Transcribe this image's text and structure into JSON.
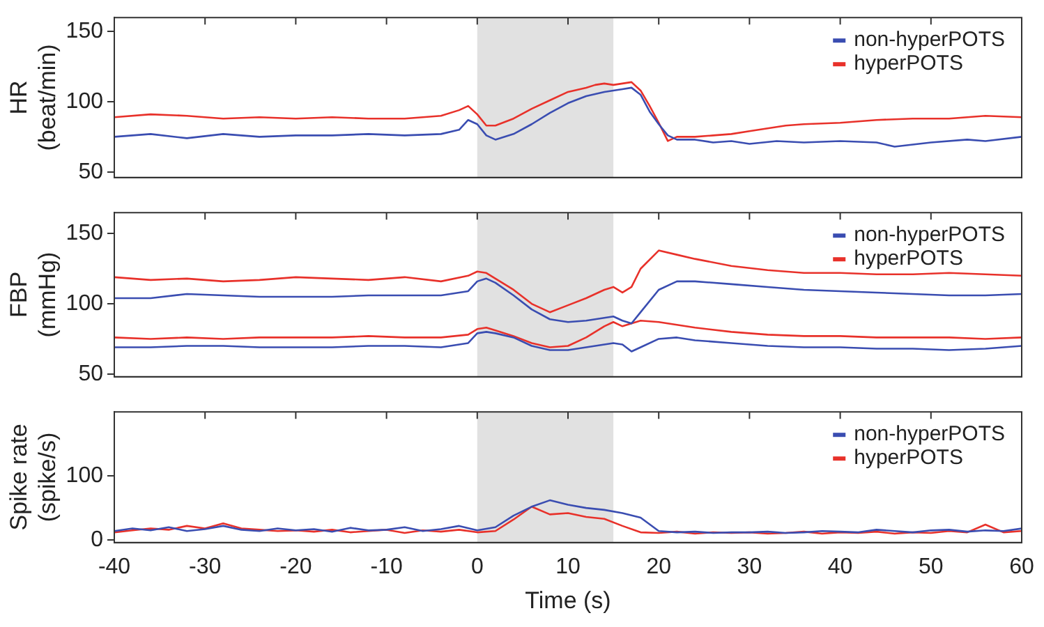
{
  "chart_data": [
    {
      "type": "line",
      "ylabel": "HR\n(beat/min)",
      "xlim": [
        -40,
        60
      ],
      "xticks": [
        -40,
        -30,
        -20,
        -10,
        0,
        10,
        20,
        30,
        40,
        50,
        60
      ],
      "ylim": [
        46,
        160
      ],
      "yticks": [
        50,
        100,
        150
      ],
      "tick_labels": "y",
      "legend": "top right",
      "bands": [
        {
          "axis": "x",
          "from": 0,
          "to": 15,
          "color": "#e1e1e1"
        }
      ],
      "series": [
        {
          "name": "non-hyperPOTS",
          "color": "#3a4db1",
          "x": [
            -40,
            -36,
            -32,
            -28,
            -24,
            -20,
            -16,
            -12,
            -8,
            -4,
            -2,
            -1,
            0,
            1,
            2,
            4,
            6,
            8,
            10,
            12,
            14,
            16,
            17,
            18,
            19,
            20,
            21,
            22,
            24,
            26,
            28,
            30,
            33,
            36,
            40,
            44,
            46,
            50,
            54,
            56,
            60
          ],
          "values": [
            75,
            77,
            74,
            77,
            75,
            76,
            76,
            77,
            76,
            77,
            80,
            87,
            84,
            76,
            73,
            77,
            84,
            92,
            99,
            104,
            107,
            109,
            110,
            105,
            93,
            84,
            76,
            73,
            73,
            71,
            72,
            70,
            72,
            71,
            72,
            71,
            68,
            71,
            73,
            72,
            75
          ]
        },
        {
          "name": "hyperPOTS",
          "color": "#e8312a",
          "x": [
            -40,
            -36,
            -32,
            -28,
            -24,
            -20,
            -16,
            -12,
            -8,
            -4,
            -2,
            -1,
            0,
            1,
            2,
            4,
            6,
            8,
            10,
            12,
            13,
            14,
            15,
            16,
            17,
            18,
            19,
            20,
            21,
            22,
            24,
            26,
            28,
            30,
            32,
            34,
            36,
            40,
            44,
            48,
            52,
            56,
            60
          ],
          "values": [
            89,
            91,
            90,
            88,
            89,
            88,
            89,
            88,
            88,
            90,
            94,
            97,
            91,
            83,
            83,
            88,
            95,
            101,
            107,
            110,
            112,
            113,
            112,
            113,
            114,
            108,
            97,
            85,
            72,
            75,
            75,
            76,
            77,
            79,
            81,
            83,
            84,
            85,
            87,
            88,
            88,
            90,
            89
          ]
        }
      ]
    },
    {
      "type": "line",
      "ylabel": "FBP\n(mmHg)",
      "xlim": [
        -40,
        60
      ],
      "xticks": [
        -40,
        -30,
        -20,
        -10,
        0,
        10,
        20,
        30,
        40,
        50,
        60
      ],
      "ylim": [
        48,
        165
      ],
      "yticks": [
        50,
        100,
        150
      ],
      "tick_labels": "y",
      "legend": "top right",
      "bands": [
        {
          "axis": "x",
          "from": 0,
          "to": 15,
          "color": "#e1e1e1"
        }
      ],
      "x": [
        -40,
        -36,
        -32,
        -28,
        -24,
        -20,
        -16,
        -12,
        -8,
        -4,
        -1,
        0,
        1,
        2,
        4,
        6,
        8,
        10,
        12,
        14,
        15,
        16,
        17,
        18,
        20,
        22,
        24,
        28,
        32,
        36,
        40,
        44,
        48,
        52,
        56,
        60
      ],
      "series": [
        {
          "name": "non-hyperPOTS",
          "color": "#3a4db1",
          "values": [
            104,
            104,
            107,
            106,
            105,
            105,
            105,
            106,
            106,
            106,
            109,
            116,
            118,
            115,
            106,
            96,
            89,
            87,
            88,
            90,
            91,
            88,
            86,
            94,
            110,
            116,
            116,
            114,
            112,
            110,
            109,
            108,
            107,
            106,
            106,
            107
          ]
        },
        {
          "name": "hyperPOTS",
          "color": "#e8312a",
          "values": [
            119,
            117,
            118,
            116,
            117,
            119,
            118,
            117,
            119,
            116,
            120,
            123,
            122,
            118,
            110,
            100,
            94,
            99,
            104,
            110,
            112,
            108,
            112,
            125,
            138,
            135,
            132,
            127,
            124,
            122,
            122,
            121,
            121,
            122,
            121,
            120
          ]
        },
        {
          "color": "#3a4db1",
          "values": [
            69,
            69,
            70,
            70,
            69,
            69,
            69,
            70,
            70,
            69,
            72,
            79,
            80,
            79,
            76,
            70,
            67,
            67,
            69,
            71,
            72,
            71,
            66,
            69,
            75,
            76,
            74,
            72,
            70,
            69,
            69,
            68,
            68,
            67,
            68,
            70
          ]
        },
        {
          "color": "#e8312a",
          "values": [
            76,
            75,
            76,
            75,
            76,
            76,
            76,
            77,
            76,
            76,
            78,
            82,
            83,
            81,
            77,
            72,
            69,
            70,
            76,
            84,
            87,
            84,
            86,
            88,
            87,
            85,
            83,
            80,
            78,
            77,
            77,
            76,
            76,
            76,
            75,
            76
          ]
        }
      ]
    },
    {
      "type": "line",
      "ylabel": "Spike rate\n(spike/s)",
      "xlabel": "Time (s)",
      "xlim": [
        -40,
        60
      ],
      "xticks": [
        -40,
        -30,
        -20,
        -10,
        0,
        10,
        20,
        30,
        40,
        50,
        60
      ],
      "ylim": [
        -4,
        200
      ],
      "yticks": [
        0,
        100
      ],
      "legend": "top right",
      "bands": [
        {
          "axis": "x",
          "from": 0,
          "to": 15,
          "color": "#e1e1e1"
        }
      ],
      "x": [
        -40,
        -38,
        -36,
        -34,
        -32,
        -30,
        -28,
        -26,
        -24,
        -22,
        -20,
        -18,
        -16,
        -14,
        -12,
        -10,
        -8,
        -6,
        -4,
        -2,
        0,
        2,
        4,
        6,
        8,
        10,
        12,
        14,
        16,
        18,
        20,
        22,
        24,
        26,
        28,
        30,
        32,
        34,
        36,
        38,
        40,
        42,
        44,
        46,
        48,
        50,
        52,
        54,
        56,
        58,
        60
      ],
      "series": [
        {
          "name": "non-hyperPOTS",
          "color": "#3a4db1",
          "values": [
            14,
            18,
            15,
            20,
            14,
            17,
            22,
            16,
            14,
            18,
            15,
            17,
            13,
            19,
            15,
            16,
            20,
            14,
            17,
            22,
            15,
            20,
            38,
            52,
            62,
            55,
            50,
            47,
            42,
            35,
            14,
            12,
            13,
            11,
            12,
            12,
            13,
            11,
            12,
            14,
            13,
            12,
            16,
            14,
            12,
            15,
            16,
            13,
            15,
            14,
            18
          ]
        },
        {
          "name": "hyperPOTS",
          "color": "#e8312a",
          "values": [
            12,
            15,
            18,
            16,
            22,
            18,
            26,
            18,
            16,
            14,
            15,
            13,
            16,
            12,
            14,
            16,
            11,
            15,
            13,
            16,
            12,
            14,
            32,
            52,
            40,
            42,
            36,
            33,
            22,
            12,
            11,
            13,
            10,
            12,
            11,
            12,
            10,
            11,
            13,
            10,
            12,
            11,
            13,
            10,
            12,
            11,
            14,
            12,
            24,
            12,
            14
          ]
        }
      ]
    }
  ]
}
